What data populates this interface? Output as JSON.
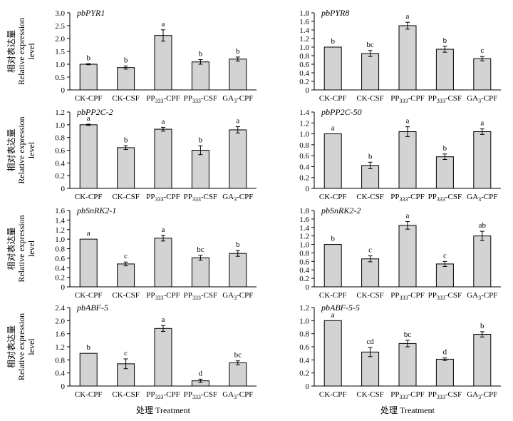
{
  "figure": {
    "ylabel_cn": "相对表达量",
    "ylabel_en_1": "Relative expression",
    "ylabel_en_2": "level",
    "xlabel": "处理 Treatment"
  },
  "chart_data": [
    {
      "type": "bar",
      "title": "pbPYR1",
      "ylabel": "相对表达量 Relative expression level",
      "xlabel": "",
      "categories": [
        "CK-CPF",
        "CK-CSF",
        "PP333-CPF",
        "PP333-CSF",
        "GA3-CPF"
      ],
      "values": [
        1.0,
        0.87,
        2.12,
        1.09,
        1.2
      ],
      "errors": [
        0.02,
        0.06,
        0.22,
        0.09,
        0.08
      ],
      "letters": [
        "b",
        "b",
        "a",
        "b",
        "b"
      ],
      "ylim": [
        0,
        3.0
      ],
      "yticks": [
        0,
        0.5,
        1.0,
        1.5,
        2.0,
        2.5,
        3.0
      ],
      "ytick_labels": [
        "0",
        "0.5",
        "1.0",
        "1.5",
        "2.0",
        "2.5",
        "3.0"
      ]
    },
    {
      "type": "bar",
      "title": "pbPYR8",
      "ylabel": "",
      "xlabel": "",
      "categories": [
        "CK-CPF",
        "CK-CSF",
        "PP333-CPF",
        "PP333-CSF",
        "GA3-CPF"
      ],
      "values": [
        1.0,
        0.85,
        1.5,
        0.95,
        0.73
      ],
      "errors": [
        0.0,
        0.07,
        0.08,
        0.07,
        0.05
      ],
      "letters": [
        "b",
        "bc",
        "a",
        "b",
        "c"
      ],
      "ylim": [
        0,
        1.8
      ],
      "yticks": [
        0,
        0.2,
        0.4,
        0.6,
        0.8,
        1.0,
        1.2,
        1.4,
        1.6,
        1.8
      ],
      "ytick_labels": [
        "0",
        "0.2",
        "0.4",
        "0.6",
        "0.8",
        "1.0",
        "1.2",
        "1.4",
        "1.6",
        "1.8"
      ]
    },
    {
      "type": "bar",
      "title": "pbPP2C-2",
      "ylabel": "相对表达量 Relative expression level",
      "xlabel": "",
      "categories": [
        "CK-CPF",
        "CK-CSF",
        "PP333-CPF",
        "PP333-CSF",
        "GA3-CPF"
      ],
      "values": [
        1.0,
        0.64,
        0.93,
        0.6,
        0.92
      ],
      "errors": [
        0.01,
        0.03,
        0.03,
        0.07,
        0.05
      ],
      "letters": [
        "a",
        "b",
        "a",
        "b",
        "a"
      ],
      "ylim": [
        0,
        1.2
      ],
      "yticks": [
        0,
        0.2,
        0.4,
        0.6,
        0.8,
        1.0,
        1.2
      ],
      "ytick_labels": [
        "0",
        "0.2",
        "0.4",
        "0.6",
        "0.8",
        "1.0",
        "1.2"
      ]
    },
    {
      "type": "bar",
      "title": "pbPP2C-50",
      "ylabel": "",
      "xlabel": "",
      "categories": [
        "CK-CPF",
        "CK-CSF",
        "PP333-CPF",
        "PP333-CSF",
        "GA3-CPF"
      ],
      "values": [
        1.0,
        0.42,
        1.04,
        0.58,
        1.04
      ],
      "errors": [
        0.0,
        0.06,
        0.09,
        0.05,
        0.05
      ],
      "letters": [
        "a",
        "b",
        "a",
        "b",
        "a"
      ],
      "ylim": [
        0,
        1.4
      ],
      "yticks": [
        0,
        0.2,
        0.4,
        0.6,
        0.8,
        1.0,
        1.2,
        1.4
      ],
      "ytick_labels": [
        "0",
        "0.2",
        "0.4",
        "0.6",
        "0.8",
        "1.0",
        "1.2",
        "1.4"
      ]
    },
    {
      "type": "bar",
      "title": "pbSnRK2-1",
      "ylabel": "相对表达量 Relative expression level",
      "xlabel": "",
      "categories": [
        "CK-CPF",
        "CK-CSF",
        "PP333-CPF",
        "PP333-CSF",
        "GA3-CPF"
      ],
      "values": [
        1.0,
        0.48,
        1.02,
        0.61,
        0.7
      ],
      "errors": [
        0.0,
        0.04,
        0.06,
        0.05,
        0.06
      ],
      "letters": [
        "a",
        "c",
        "a",
        "bc",
        "b"
      ],
      "ylim": [
        0,
        1.6
      ],
      "yticks": [
        0,
        0.2,
        0.4,
        0.6,
        0.8,
        1.0,
        1.2,
        1.4,
        1.6
      ],
      "ytick_labels": [
        "0",
        "0.2",
        "0.4",
        "0.6",
        "0.8",
        "1.0",
        "1.2",
        "1.4",
        "1.6"
      ]
    },
    {
      "type": "bar",
      "title": "pbSnRK2-2",
      "ylabel": "",
      "xlabel": "",
      "categories": [
        "CK-CPF",
        "CK-CSF",
        "PP333-CPF",
        "PP333-CSF",
        "GA3-CPF"
      ],
      "values": [
        1.0,
        0.66,
        1.45,
        0.54,
        1.2
      ],
      "errors": [
        0.0,
        0.07,
        0.09,
        0.06,
        0.11
      ],
      "letters": [
        "b",
        "c",
        "a",
        "c",
        "ab"
      ],
      "ylim": [
        0,
        1.8
      ],
      "yticks": [
        0,
        0.2,
        0.4,
        0.6,
        0.8,
        1.0,
        1.2,
        1.4,
        1.6,
        1.8
      ],
      "ytick_labels": [
        "0",
        "0.2",
        "0.4",
        "0.6",
        "0.8",
        "1.0",
        "1.2",
        "1.4",
        "1.6",
        "1.8"
      ]
    },
    {
      "type": "bar",
      "title": "pbABF-5",
      "ylabel": "相对表达量 Relative expression level",
      "xlabel": "处理 Treatment",
      "categories": [
        "CK-CPF",
        "CK-CSF",
        "PP333-CPF",
        "PP333-CSF",
        "GA3-CPF"
      ],
      "values": [
        1.0,
        0.68,
        1.76,
        0.16,
        0.71
      ],
      "errors": [
        0.0,
        0.15,
        0.09,
        0.05,
        0.06
      ],
      "letters": [
        "b",
        "c",
        "a",
        "d",
        "bc"
      ],
      "ylim": [
        0,
        2.4
      ],
      "yticks": [
        0,
        0.4,
        0.8,
        1.2,
        1.6,
        2.0,
        2.4
      ],
      "ytick_labels": [
        "0",
        "0.4",
        "0.8",
        "1.2",
        "1.6",
        "2.0",
        "2.4"
      ]
    },
    {
      "type": "bar",
      "title": "pbABF-5-5",
      "ylabel": "",
      "xlabel": "处理 Treatment",
      "categories": [
        "CK-CPF",
        "CK-CSF",
        "PP333-CPF",
        "PP333-CSF",
        "GA3-CPF"
      ],
      "values": [
        1.0,
        0.52,
        0.65,
        0.41,
        0.79
      ],
      "errors": [
        0.0,
        0.07,
        0.05,
        0.02,
        0.04
      ],
      "letters": [
        "a",
        "cd",
        "bc",
        "d",
        "b"
      ],
      "ylim": [
        0,
        1.2
      ],
      "yticks": [
        0,
        0.2,
        0.4,
        0.6,
        0.8,
        1.0,
        1.2
      ],
      "ytick_labels": [
        "0",
        "0.2",
        "0.4",
        "0.6",
        "0.8",
        "1.0",
        "1.2"
      ]
    }
  ],
  "colors": {
    "bar_fill": "#d3d3d3",
    "bar_stroke": "#000000",
    "axis": "#000000"
  }
}
